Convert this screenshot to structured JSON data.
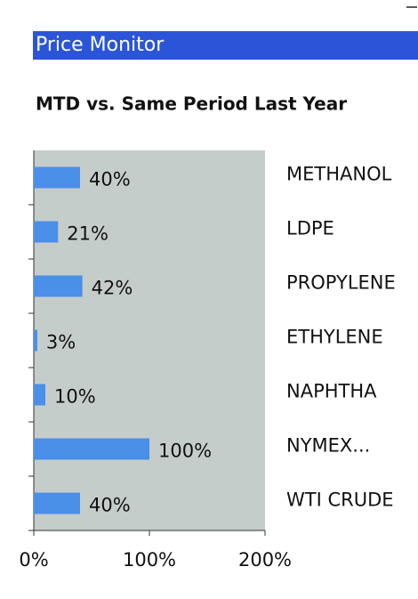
{
  "chart_data": {
    "type": "barh",
    "header": "Price Monitor",
    "title": "MTD vs. Same Period Last Year",
    "categories": [
      "METHANOL",
      "LDPE",
      "PROPYLENE",
      "ETHYLENE",
      "NAPHTHA",
      "NYMEX...",
      "WTI CRUDE"
    ],
    "values": [
      40,
      21,
      42,
      3,
      10,
      100,
      40
    ],
    "value_labels": [
      "40%",
      "21%",
      "42%",
      "3%",
      "10%",
      "100%",
      "40%"
    ],
    "color": "#4a8fe8",
    "xlim": [
      0,
      200
    ],
    "xticks": [
      {
        "value": 0,
        "label": "0%"
      },
      {
        "value": 100,
        "label": "100%"
      },
      {
        "value": 200,
        "label": "200%"
      }
    ]
  }
}
